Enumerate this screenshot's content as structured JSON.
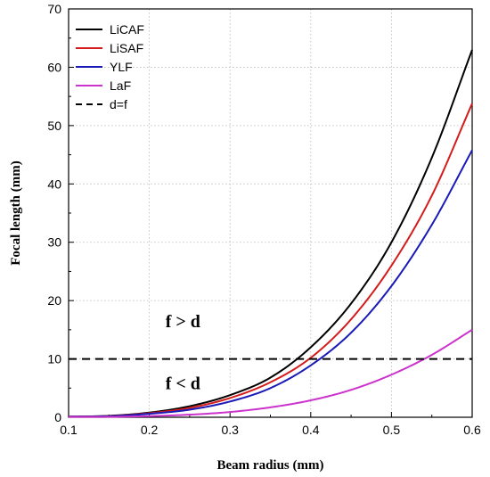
{
  "chart_data": {
    "type": "line",
    "title": "",
    "xlabel": "Beam radius (mm)",
    "ylabel": "Focal length (mm)",
    "xlim": [
      0.1,
      0.6
    ],
    "ylim": [
      0,
      70
    ],
    "x_ticks": [
      "0.1",
      "0.2",
      "0.3",
      "0.4",
      "0.5",
      "0.6"
    ],
    "y_ticks": [
      "0",
      "10",
      "20",
      "30",
      "40",
      "50",
      "60",
      "70"
    ],
    "grid": true,
    "legend_position": "top-left",
    "x": [
      0.1,
      0.15,
      0.2,
      0.25,
      0.3,
      0.35,
      0.4,
      0.45,
      0.5,
      0.55,
      0.6
    ],
    "series": [
      {
        "name": "LiCAF",
        "color": "#000000",
        "style": "solid",
        "values": [
          0.1,
          0.25,
          0.8,
          1.9,
          3.8,
          6.8,
          12.0,
          19.5,
          30.0,
          44.5,
          63.0
        ]
      },
      {
        "name": "LiSAF",
        "color": "#d41c1c",
        "style": "solid",
        "values": [
          0.1,
          0.2,
          0.7,
          1.6,
          3.3,
          6.0,
          10.2,
          16.8,
          26.0,
          38.0,
          53.8
        ]
      },
      {
        "name": "YLF",
        "color": "#1a1ab8",
        "style": "solid",
        "values": [
          0.1,
          0.18,
          0.6,
          1.3,
          2.7,
          5.0,
          8.9,
          14.5,
          22.5,
          33.0,
          45.8
        ]
      },
      {
        "name": "LaF",
        "color": "#cc33cc",
        "style": "solid",
        "values": [
          0.05,
          0.07,
          0.2,
          0.45,
          0.9,
          1.7,
          2.9,
          4.7,
          7.3,
          10.7,
          15.0
        ]
      },
      {
        "name": "d=f",
        "color": "#000000",
        "style": "dashed",
        "values": [
          10,
          10,
          10,
          10,
          10,
          10,
          10,
          10,
          10,
          10,
          10
        ]
      }
    ],
    "annotations": [
      {
        "text": "f > d",
        "x": 0.22,
        "y": 15.4
      },
      {
        "text": "f < d",
        "x": 0.22,
        "y": 4.8
      }
    ]
  }
}
